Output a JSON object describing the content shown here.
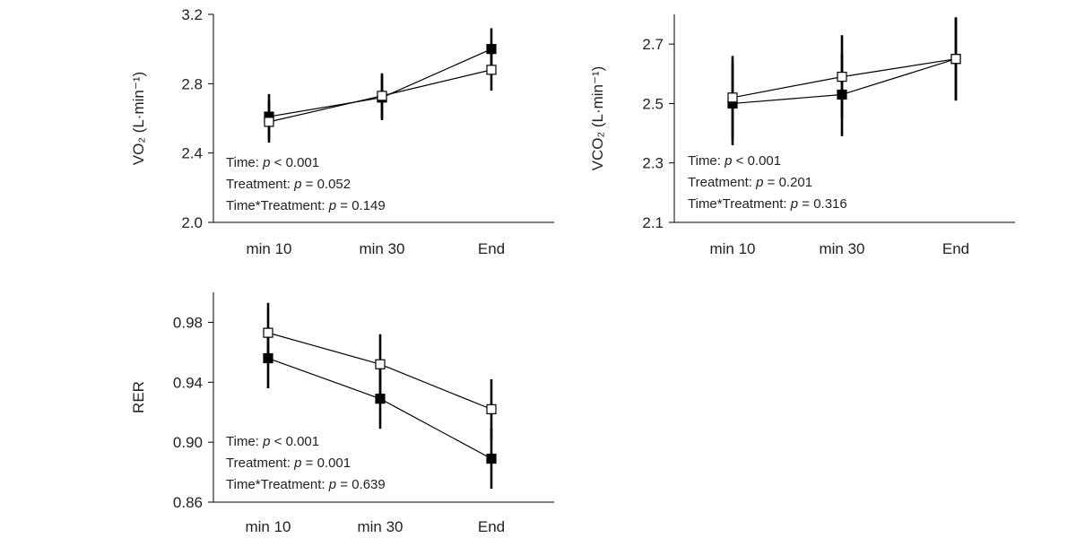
{
  "figure": {
    "background": "#ffffff",
    "axis_color": "#000000",
    "marker_fill_a": "#000000",
    "marker_fill_b": "#ffffff"
  },
  "chart_data": [
    {
      "id": "vo2",
      "type": "line",
      "ylabel": "VO₂ (L·min⁻¹)",
      "ylim": [
        2.0,
        3.2
      ],
      "yticks": [
        "3.2",
        "2.8",
        "2.4",
        "2.0"
      ],
      "categories": [
        "min 10",
        "min 30",
        "End"
      ],
      "series": [
        {
          "name": "filled",
          "values": [
            2.61,
            2.72,
            3.0
          ],
          "err_low": [
            2.48,
            2.59,
            2.88
          ],
          "err_high": [
            2.74,
            2.85,
            3.12
          ]
        },
        {
          "name": "open",
          "values": [
            2.58,
            2.73,
            2.88
          ],
          "err_low": [
            2.46,
            2.6,
            2.76
          ],
          "err_high": [
            2.7,
            2.86,
            3.0
          ]
        }
      ],
      "stats": [
        {
          "label": "Time: ",
          "p": "p",
          "rest": " < 0.001"
        },
        {
          "label": "Treatment: ",
          "p": "p",
          "rest": " = 0.052"
        },
        {
          "label": "Time*Treatment: ",
          "p": "p",
          "rest": " = 0.149"
        }
      ]
    },
    {
      "id": "vco2",
      "type": "line",
      "ylabel": "VCO₂ (L·min⁻¹)",
      "ylim": [
        2.1,
        2.8
      ],
      "yticks": [
        "2.7",
        "2.5",
        "2.3",
        "2.1"
      ],
      "categories": [
        "min 10",
        "min 30",
        "End"
      ],
      "series": [
        {
          "name": "filled",
          "values": [
            2.5,
            2.53,
            2.65
          ],
          "err_low": [
            2.36,
            2.39,
            2.51
          ],
          "err_high": [
            2.64,
            2.67,
            2.79
          ]
        },
        {
          "name": "open",
          "values": [
            2.52,
            2.59,
            2.65
          ],
          "err_low": [
            2.38,
            2.45,
            2.51
          ],
          "err_high": [
            2.66,
            2.73,
            2.79
          ]
        }
      ],
      "stats": [
        {
          "label": "Time: ",
          "p": "p",
          "rest": " < 0.001"
        },
        {
          "label": "Treatment: ",
          "p": "p",
          "rest": " = 0.201"
        },
        {
          "label": "Time*Treatment: ",
          "p": "p",
          "rest": " = 0.316"
        }
      ]
    },
    {
      "id": "rer",
      "type": "line",
      "ylabel": "RER",
      "ylim": [
        0.86,
        1.0
      ],
      "yticks": [
        "0.98",
        "0.94",
        "0.90",
        "0.86"
      ],
      "categories": [
        "min 10",
        "min 30",
        "End"
      ],
      "series": [
        {
          "name": "filled",
          "values": [
            0.956,
            0.929,
            0.889
          ],
          "err_low": [
            0.936,
            0.909,
            0.869
          ],
          "err_high": [
            0.976,
            0.949,
            0.909
          ]
        },
        {
          "name": "open",
          "values": [
            0.973,
            0.952,
            0.922
          ],
          "err_low": [
            0.953,
            0.932,
            0.902
          ],
          "err_high": [
            0.993,
            0.972,
            0.942
          ]
        }
      ],
      "stats": [
        {
          "label": "Time: ",
          "p": "p",
          "rest": " < 0.001"
        },
        {
          "label": "Treatment: ",
          "p": "p",
          "rest": " = 0.001"
        },
        {
          "label": "Time*Treatment: ",
          "p": "p",
          "rest": " = 0.639"
        }
      ]
    }
  ]
}
